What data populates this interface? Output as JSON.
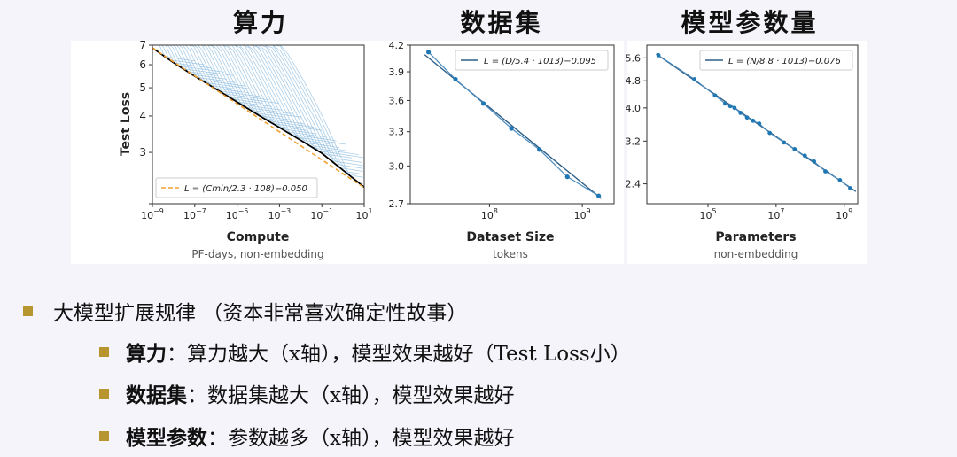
{
  "titles": [
    "算力",
    "数据集",
    "模型参数量"
  ],
  "chart_data": [
    {
      "type": "line",
      "title": "算力",
      "xlabel": "Compute",
      "xsublabel": "PF-days, non-embedding",
      "ylabel": "Test Loss",
      "xscale": "log",
      "yscale": "log",
      "xlim": [
        1e-09,
        10
      ],
      "ylim": [
        2,
        7
      ],
      "xticks": [
        1e-09,
        1e-07,
        1e-05,
        0.001,
        0.1,
        10
      ],
      "xtick_labels": [
        "10−9",
        "10−7",
        "10−5",
        "10−3",
        "10−1",
        "101"
      ],
      "yticks": [
        2,
        3,
        4,
        5,
        6,
        7
      ],
      "ytick_labels": [
        "",
        "3",
        "4",
        "5",
        "6",
        "7"
      ],
      "legend": {
        "text": "L = (Cmin/2.3 · 108)−0.050",
        "position": "bottom-left"
      },
      "series": [
        {
          "name": "L = (Cmin/2.3 · 108)−0.050",
          "style": "dashed",
          "color": "#f0a030",
          "x": [
            1e-09,
            10
          ],
          "y": [
            6.85,
            2.27
          ]
        },
        {
          "style": "frontier",
          "color": "#000000",
          "x": [
            1e-09,
            1e-08,
            1e-07,
            1e-06,
            1e-05,
            0.0001,
            0.001,
            0.01,
            0.1,
            10
          ],
          "y": [
            6.85,
            6.1,
            5.48,
            4.95,
            4.47,
            4.03,
            3.65,
            3.3,
            2.98,
            2.28
          ]
        }
      ]
    },
    {
      "type": "line",
      "title": "数据集",
      "xlabel": "Dataset Size",
      "xsublabel": "tokens",
      "xscale": "log",
      "yscale": "log",
      "xlim": [
        14000000.0,
        2200000000.0
      ],
      "ylim": [
        2.7,
        4.2
      ],
      "xticks": [
        100000000.0,
        1000000000.0
      ],
      "xtick_labels": [
        "108",
        "109"
      ],
      "yticks": [
        2.7,
        3.0,
        3.3,
        3.6,
        3.9,
        4.2
      ],
      "ytick_labels": [
        "2.7",
        "3.0",
        "3.3",
        "3.6",
        "3.9",
        "4.2"
      ],
      "legend": {
        "text": "L = (D/5.4 · 1013)−0.095",
        "position": "top-right"
      },
      "points": {
        "x": [
          22000000.0,
          43000000.0,
          86000000.0,
          172000000.0,
          344000000.0,
          690000000.0,
          1500000000.0
        ],
        "y": [
          4.12,
          3.82,
          3.57,
          3.33,
          3.14,
          2.91,
          2.76
        ]
      },
      "fit": {
        "x": [
          20000000.0,
          1600000000.0
        ],
        "y": [
          4.09,
          2.74
        ]
      }
    },
    {
      "type": "line",
      "title": "模型参数量",
      "xlabel": "Parameters",
      "xsublabel": "non-embedding",
      "xscale": "log",
      "yscale": "log",
      "xlim": [
        1600.0,
        2500000000.0
      ],
      "ylim": [
        2.1,
        6.1
      ],
      "xticks": [
        100000.0,
        10000000.0,
        1000000000.0
      ],
      "xtick_labels": [
        "105",
        "107",
        "109"
      ],
      "yticks": [
        2.4,
        3.2,
        4.0,
        4.8,
        5.6
      ],
      "ytick_labels": [
        "2.4",
        "3.2",
        "4.0",
        "4.8",
        "5.6"
      ],
      "legend": {
        "text": "L = (N/8.8 · 1013)−0.076",
        "position": "top-right"
      },
      "points": {
        "x": [
          3500.0,
          40000.0,
          160000.0,
          320000.0,
          450000.0,
          600000.0,
          900000.0,
          1400000.0,
          2100000.0,
          3200000.0,
          6500000.0,
          17000000.0,
          35000000.0,
          70000000.0,
          130000000.0,
          280000000.0,
          750000000.0,
          1500000000.0
        ],
        "y": [
          5.7,
          4.85,
          4.35,
          4.12,
          4.05,
          4.0,
          3.87,
          3.75,
          3.67,
          3.6,
          3.38,
          3.17,
          3.03,
          2.9,
          2.79,
          2.61,
          2.46,
          2.33
        ]
      },
      "fit": {
        "x": [
          3000.0,
          2200000000.0
        ],
        "y": [
          5.75,
          2.28
        ]
      }
    }
  ],
  "bullets": [
    {
      "text": "大模型扩展规律 （资本非常喜欢确定性故事）"
    },
    {
      "label": "算力",
      "text": "：算力越大（x轴），模型效果越好（Test Loss小）"
    },
    {
      "label": "数据集",
      "text": "：数据集越大（x轴），模型效果越好"
    },
    {
      "label": "模型参数",
      "text": "：参数越多（x轴），模型效果越好"
    }
  ],
  "colors": {
    "bullet": "#b8962f",
    "curves": "#7fb3db",
    "fit": "#2f5f88",
    "points": "#1f77b4",
    "dashed": "#f0a030"
  }
}
